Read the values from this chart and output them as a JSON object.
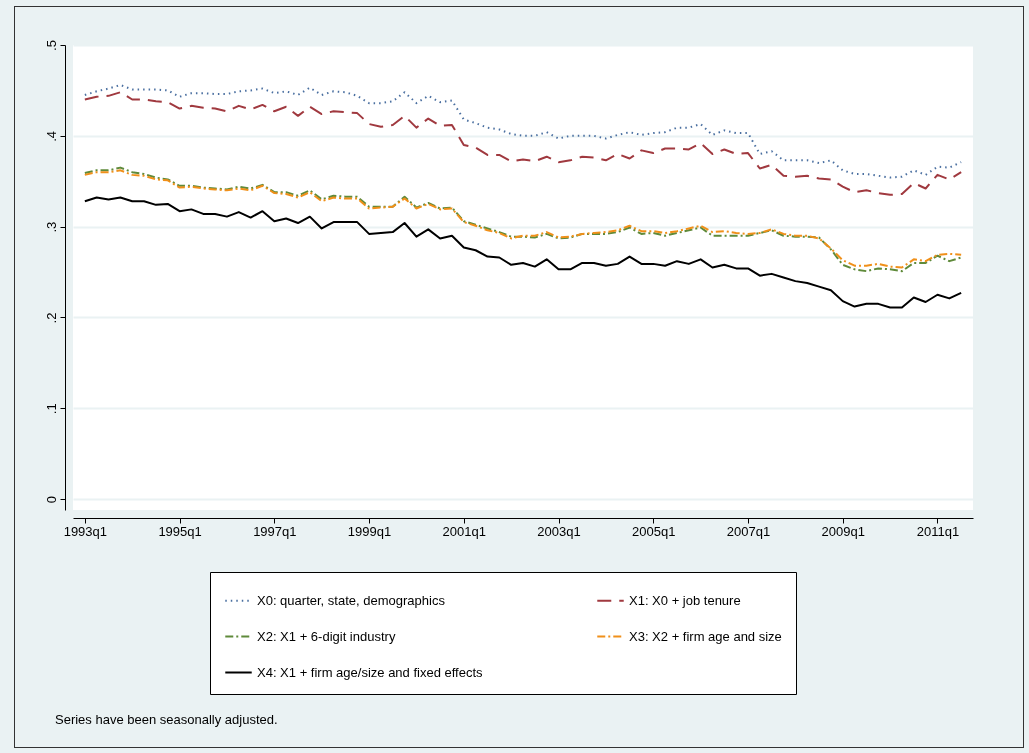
{
  "chart_data": {
    "type": "line",
    "annotations": [
      "Series have been seasonally adjusted."
    ],
    "ylim": [
      -0.012,
      0.5
    ],
    "yticks": [
      {
        "value": 0,
        "label": "0"
      },
      {
        "value": 0.1,
        "label": ".1"
      },
      {
        "value": 0.2,
        "label": ".2"
      },
      {
        "value": 0.3,
        "label": ".3"
      },
      {
        "value": 0.4,
        "label": ".4"
      },
      {
        "value": 0.5,
        "label": ".5"
      }
    ],
    "grid": "y",
    "legend": "bottom",
    "categories": [
      "1993q1",
      null,
      null,
      null,
      null,
      null,
      null,
      null,
      "1995q1",
      null,
      null,
      null,
      null,
      null,
      null,
      null,
      "1997q1",
      null,
      null,
      null,
      null,
      null,
      null,
      null,
      "1999q1",
      null,
      null,
      null,
      null,
      null,
      null,
      null,
      "2001q1",
      null,
      null,
      null,
      null,
      null,
      null,
      null,
      "2003q1",
      null,
      null,
      null,
      null,
      null,
      null,
      null,
      "2005q1",
      null,
      null,
      null,
      null,
      null,
      null,
      null,
      "2007q1",
      null,
      null,
      null,
      null,
      null,
      null,
      null,
      "2009q1",
      null,
      null,
      null,
      null,
      null,
      null,
      null,
      "2011q1",
      null,
      null
    ],
    "series": [
      {
        "name": "X0: quarter, state, demographics",
        "color": "#4a6fa0",
        "line_style": "dotted",
        "values": [
          0.445,
          0.449,
          0.452,
          0.456,
          0.451,
          0.451,
          0.451,
          0.45,
          0.443,
          0.447,
          0.447,
          0.446,
          0.446,
          0.449,
          0.45,
          0.452,
          0.447,
          0.449,
          0.445,
          0.453,
          0.445,
          0.449,
          0.448,
          0.444,
          0.436,
          0.436,
          0.438,
          0.448,
          0.436,
          0.444,
          0.437,
          0.439,
          0.418,
          0.414,
          0.409,
          0.407,
          0.402,
          0.4,
          0.4,
          0.404,
          0.397,
          0.4,
          0.4,
          0.4,
          0.397,
          0.401,
          0.404,
          0.401,
          0.403,
          0.404,
          0.409,
          0.409,
          0.413,
          0.401,
          0.406,
          0.403,
          0.403,
          0.38,
          0.383,
          0.373,
          0.373,
          0.373,
          0.37,
          0.373,
          0.362,
          0.358,
          0.358,
          0.356,
          0.354,
          0.355,
          0.362,
          0.357,
          0.366,
          0.365,
          0.371
        ]
      },
      {
        "name": "X1: X0 + job tenure",
        "color": "#a0393f",
        "line_style": "dashed",
        "values": [
          0.44,
          0.443,
          0.444,
          0.448,
          0.44,
          0.44,
          0.438,
          0.437,
          0.43,
          0.433,
          0.431,
          0.43,
          0.427,
          0.433,
          0.429,
          0.434,
          0.427,
          0.432,
          0.422,
          0.432,
          0.424,
          0.427,
          0.426,
          0.425,
          0.413,
          0.41,
          0.412,
          0.422,
          0.409,
          0.419,
          0.411,
          0.412,
          0.39,
          0.387,
          0.379,
          0.379,
          0.372,
          0.374,
          0.372,
          0.377,
          0.371,
          0.373,
          0.377,
          0.376,
          0.373,
          0.38,
          0.375,
          0.384,
          0.381,
          0.386,
          0.386,
          0.385,
          0.392,
          0.38,
          0.385,
          0.38,
          0.381,
          0.364,
          0.368,
          0.356,
          0.355,
          0.356,
          0.353,
          0.352,
          0.344,
          0.338,
          0.34,
          0.337,
          0.335,
          0.336,
          0.348,
          0.342,
          0.357,
          0.352,
          0.36
        ]
      },
      {
        "name": "X2: X1 + 6-digit industry",
        "color": "#5f8a3a",
        "line_style": "dashdot",
        "values": [
          0.359,
          0.362,
          0.362,
          0.365,
          0.36,
          0.358,
          0.354,
          0.352,
          0.345,
          0.345,
          0.343,
          0.342,
          0.341,
          0.344,
          0.342,
          0.346,
          0.338,
          0.338,
          0.334,
          0.34,
          0.33,
          0.334,
          0.333,
          0.333,
          0.322,
          0.322,
          0.322,
          0.333,
          0.321,
          0.326,
          0.32,
          0.321,
          0.306,
          0.302,
          0.298,
          0.294,
          0.289,
          0.289,
          0.288,
          0.292,
          0.287,
          0.288,
          0.292,
          0.292,
          0.292,
          0.294,
          0.299,
          0.292,
          0.293,
          0.29,
          0.293,
          0.296,
          0.299,
          0.29,
          0.29,
          0.29,
          0.29,
          0.293,
          0.296,
          0.29,
          0.289,
          0.289,
          0.288,
          0.275,
          0.258,
          0.253,
          0.251,
          0.254,
          0.253,
          0.251,
          0.26,
          0.26,
          0.268,
          0.262,
          0.266
        ]
      },
      {
        "name": "X3: X2 + firm age and size",
        "color": "#f0901a",
        "line_style": "dashdot",
        "values": [
          0.357,
          0.36,
          0.36,
          0.362,
          0.357,
          0.356,
          0.352,
          0.351,
          0.343,
          0.344,
          0.342,
          0.341,
          0.34,
          0.342,
          0.34,
          0.345,
          0.337,
          0.336,
          0.332,
          0.338,
          0.328,
          0.332,
          0.331,
          0.331,
          0.32,
          0.321,
          0.322,
          0.331,
          0.32,
          0.325,
          0.319,
          0.32,
          0.305,
          0.301,
          0.296,
          0.293,
          0.287,
          0.29,
          0.29,
          0.294,
          0.288,
          0.289,
          0.292,
          0.293,
          0.294,
          0.296,
          0.301,
          0.295,
          0.295,
          0.293,
          0.295,
          0.298,
          0.301,
          0.294,
          0.295,
          0.293,
          0.292,
          0.293,
          0.297,
          0.292,
          0.29,
          0.29,
          0.287,
          0.276,
          0.263,
          0.257,
          0.257,
          0.259,
          0.256,
          0.255,
          0.264,
          0.262,
          0.269,
          0.27,
          0.269
        ]
      },
      {
        "name": "X4: X1 + firm age/size and fixed effects",
        "color": "#000000",
        "line_style": "solid",
        "values": [
          0.328,
          0.332,
          0.33,
          0.332,
          0.328,
          0.328,
          0.324,
          0.325,
          0.317,
          0.319,
          0.314,
          0.314,
          0.311,
          0.316,
          0.31,
          0.317,
          0.306,
          0.309,
          0.304,
          0.311,
          0.298,
          0.305,
          0.305,
          0.305,
          0.292,
          0.293,
          0.294,
          0.304,
          0.289,
          0.297,
          0.287,
          0.29,
          0.277,
          0.274,
          0.267,
          0.266,
          0.258,
          0.26,
          0.256,
          0.264,
          0.253,
          0.253,
          0.26,
          0.26,
          0.257,
          0.259,
          0.267,
          0.259,
          0.259,
          0.257,
          0.262,
          0.259,
          0.264,
          0.255,
          0.258,
          0.254,
          0.254,
          0.246,
          0.248,
          0.244,
          0.24,
          0.238,
          0.234,
          0.23,
          0.218,
          0.212,
          0.215,
          0.215,
          0.211,
          0.211,
          0.222,
          0.217,
          0.225,
          0.221,
          0.227
        ]
      }
    ]
  }
}
